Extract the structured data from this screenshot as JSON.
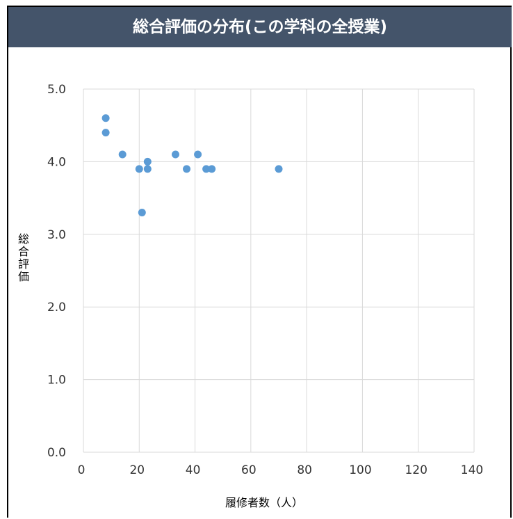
{
  "header": {
    "title": "総合評価の分布(この学科の全授業)"
  },
  "chart_data": {
    "type": "scatter",
    "title": "総合評価の分布(この学科の全授業)",
    "xlabel": "履修者数（人）",
    "ylabel": "総合評価",
    "xlim": [
      0,
      140
    ],
    "ylim": [
      0.0,
      5.0
    ],
    "x_ticks": [
      "0",
      "20",
      "40",
      "60",
      "80",
      "100",
      "120",
      "140"
    ],
    "y_ticks": [
      "0.0",
      "1.0",
      "2.0",
      "3.0",
      "4.0",
      "5.0"
    ],
    "grid": true,
    "legend": "none",
    "marker_color": "#5b9bd5",
    "points": [
      {
        "x": 8,
        "y": 4.6
      },
      {
        "x": 8,
        "y": 4.4
      },
      {
        "x": 14,
        "y": 4.1
      },
      {
        "x": 20,
        "y": 3.9
      },
      {
        "x": 21,
        "y": 3.3
      },
      {
        "x": 23,
        "y": 4.0
      },
      {
        "x": 23,
        "y": 3.9
      },
      {
        "x": 33,
        "y": 4.1
      },
      {
        "x": 37,
        "y": 3.9
      },
      {
        "x": 41,
        "y": 4.1
      },
      {
        "x": 44,
        "y": 3.9
      },
      {
        "x": 46,
        "y": 3.9
      },
      {
        "x": 70,
        "y": 3.9
      }
    ]
  }
}
